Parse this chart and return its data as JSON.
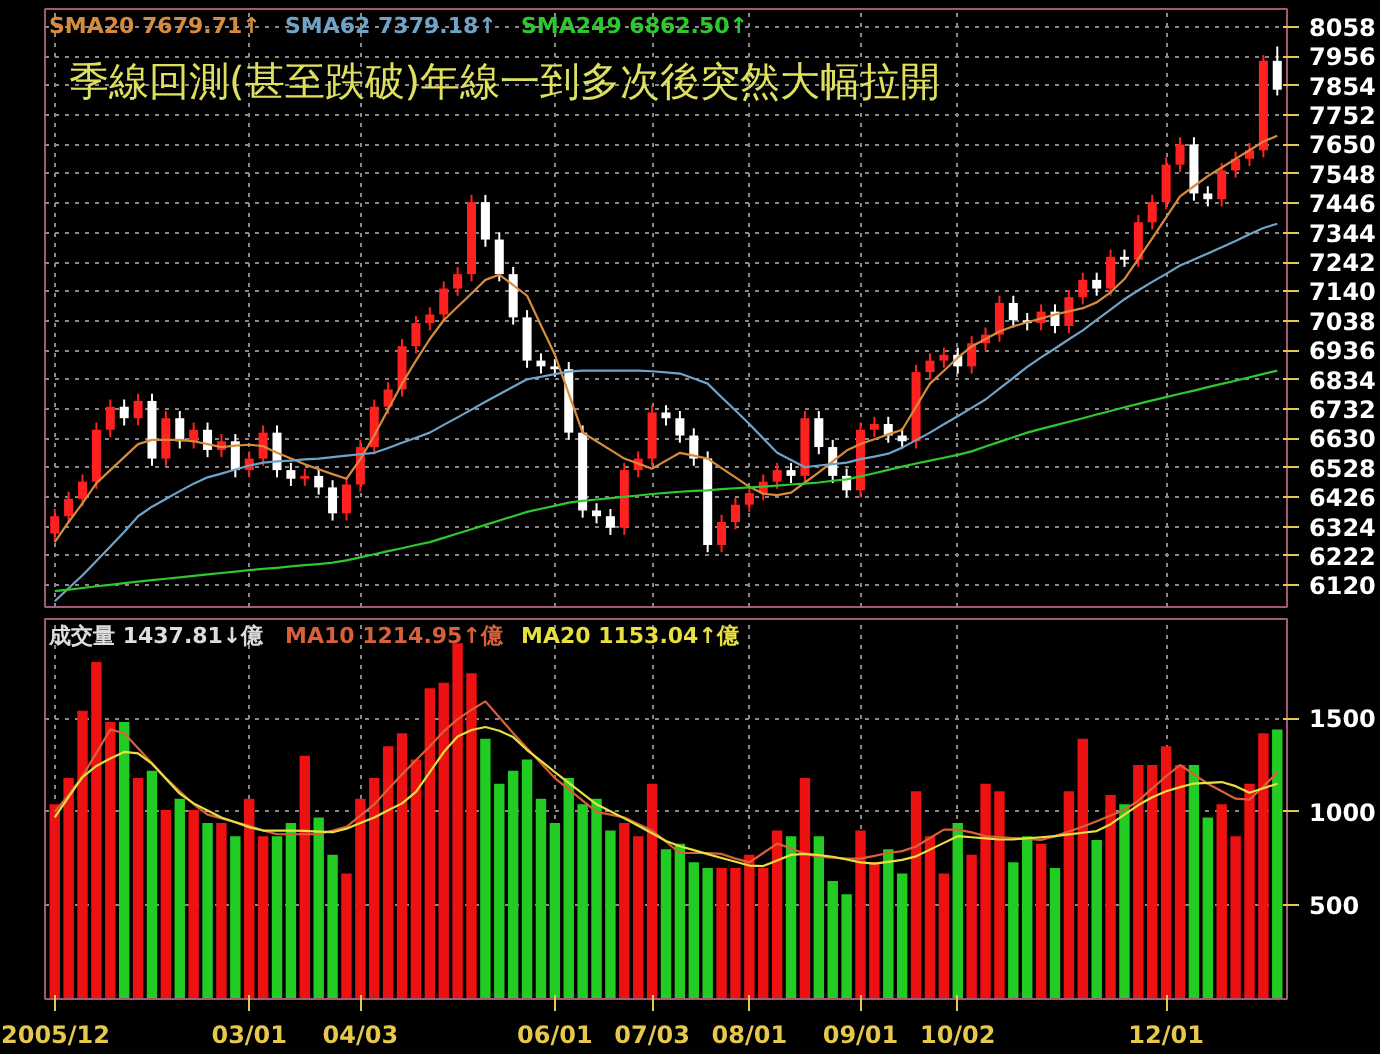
{
  "chart_data": [
    {
      "type": "candlestick",
      "title": "季線回測(甚至跌破)年線一到多次後突然大幅拉開",
      "categories": [
        null,
        null,
        null,
        null,
        null,
        null,
        null,
        null,
        null,
        null,
        null,
        null,
        null,
        null,
        null,
        null,
        null,
        null,
        null,
        null,
        null,
        null,
        null,
        null,
        null,
        null,
        null,
        null,
        null,
        null,
        null,
        null,
        null,
        null,
        null,
        null,
        null,
        null,
        null,
        null,
        null,
        null,
        null,
        null,
        null,
        null,
        null,
        null,
        null,
        null,
        null,
        null,
        null,
        null,
        null,
        null,
        null,
        null,
        null,
        null,
        null,
        null,
        null,
        null,
        null,
        null,
        null,
        null,
        null,
        null,
        null,
        null,
        null,
        null,
        null,
        null,
        null,
        null,
        null,
        null,
        null,
        null,
        null,
        null,
        null,
        null,
        null,
        null,
        null
      ],
      "ohlc": [
        [
          6300,
          6385,
          6275,
          6360
        ],
        [
          6360,
          6445,
          6335,
          6420
        ],
        [
          6420,
          6505,
          6395,
          6480
        ],
        [
          6480,
          6685,
          6455,
          6660
        ],
        [
          6660,
          6765,
          6635,
          6740
        ],
        [
          6740,
          6765,
          6675,
          6700
        ],
        [
          6700,
          6785,
          6675,
          6760
        ],
        [
          6760,
          6785,
          6535,
          6560
        ],
        [
          6560,
          6725,
          6535,
          6700
        ],
        [
          6700,
          6725,
          6595,
          6620
        ],
        [
          6620,
          6685,
          6595,
          6660
        ],
        [
          6660,
          6685,
          6565,
          6590
        ],
        [
          6590,
          6645,
          6565,
          6620
        ],
        [
          6620,
          6645,
          6495,
          6520
        ],
        [
          6520,
          6585,
          6495,
          6560
        ],
        [
          6560,
          6675,
          6535,
          6650
        ],
        [
          6650,
          6675,
          6495,
          6520
        ],
        [
          6520,
          6545,
          6465,
          6490
        ],
        [
          6490,
          6525,
          6465,
          6500
        ],
        [
          6500,
          6525,
          6435,
          6460
        ],
        [
          6460,
          6485,
          6345,
          6370
        ],
        [
          6370,
          6495,
          6345,
          6470
        ],
        [
          6470,
          6625,
          6445,
          6600
        ],
        [
          6600,
          6765,
          6575,
          6740
        ],
        [
          6740,
          6825,
          6715,
          6800
        ],
        [
          6800,
          6975,
          6775,
          6950
        ],
        [
          6950,
          7055,
          6925,
          7030
        ],
        [
          7030,
          7085,
          7005,
          7060
        ],
        [
          7060,
          7175,
          7035,
          7150
        ],
        [
          7150,
          7225,
          7125,
          7200
        ],
        [
          7200,
          7475,
          7175,
          7450
        ],
        [
          7450,
          7475,
          7295,
          7320
        ],
        [
          7320,
          7345,
          7175,
          7200
        ],
        [
          7200,
          7225,
          7025,
          7050
        ],
        [
          7050,
          7075,
          6875,
          6900
        ],
        [
          6900,
          6925,
          6855,
          6880
        ],
        [
          6880,
          6905,
          6845,
          6870
        ],
        [
          6870,
          6895,
          6625,
          6650
        ],
        [
          6650,
          6675,
          6355,
          6380
        ],
        [
          6380,
          6405,
          6335,
          6360
        ],
        [
          6360,
          6385,
          6295,
          6320
        ],
        [
          6320,
          6545,
          6295,
          6520
        ],
        [
          6520,
          6585,
          6495,
          6560
        ],
        [
          6560,
          6745,
          6535,
          6720
        ],
        [
          6720,
          6745,
          6675,
          6700
        ],
        [
          6700,
          6725,
          6615,
          6640
        ],
        [
          6640,
          6665,
          6535,
          6560
        ],
        [
          6560,
          6585,
          6235,
          6260
        ],
        [
          6260,
          6365,
          6235,
          6340
        ],
        [
          6340,
          6425,
          6315,
          6400
        ],
        [
          6400,
          6465,
          6375,
          6440
        ],
        [
          6440,
          6505,
          6415,
          6480
        ],
        [
          6480,
          6545,
          6455,
          6520
        ],
        [
          6520,
          6545,
          6475,
          6500
        ],
        [
          6500,
          6725,
          6475,
          6700
        ],
        [
          6700,
          6725,
          6575,
          6600
        ],
        [
          6600,
          6625,
          6475,
          6500
        ],
        [
          6500,
          6525,
          6425,
          6450
        ],
        [
          6450,
          6685,
          6425,
          6660
        ],
        [
          6660,
          6705,
          6635,
          6680
        ],
        [
          6680,
          6705,
          6615,
          6640
        ],
        [
          6640,
          6665,
          6595,
          6620
        ],
        [
          6620,
          6885,
          6595,
          6860
        ],
        [
          6860,
          6925,
          6835,
          6900
        ],
        [
          6900,
          6945,
          6875,
          6920
        ],
        [
          6920,
          6945,
          6855,
          6880
        ],
        [
          6880,
          6985,
          6855,
          6960
        ],
        [
          6960,
          7015,
          6935,
          6990
        ],
        [
          6990,
          7125,
          6965,
          7100
        ],
        [
          7100,
          7125,
          7015,
          7040
        ],
        [
          7040,
          7065,
          7005,
          7030
        ],
        [
          7030,
          7095,
          7005,
          7070
        ],
        [
          7070,
          7095,
          6995,
          7020
        ],
        [
          7020,
          7145,
          6995,
          7120
        ],
        [
          7120,
          7205,
          7095,
          7180
        ],
        [
          7180,
          7205,
          7125,
          7150
        ],
        [
          7150,
          7285,
          7125,
          7260
        ],
        [
          7260,
          7285,
          7225,
          7250
        ],
        [
          7250,
          7405,
          7225,
          7380
        ],
        [
          7380,
          7475,
          7355,
          7450
        ],
        [
          7450,
          7605,
          7425,
          7580
        ],
        [
          7580,
          7675,
          7555,
          7650
        ],
        [
          7650,
          7675,
          7455,
          7480
        ],
        [
          7480,
          7505,
          7435,
          7460
        ],
        [
          7460,
          7585,
          7435,
          7560
        ],
        [
          7560,
          7625,
          7535,
          7600
        ],
        [
          7600,
          7655,
          7575,
          7630
        ],
        [
          7630,
          7960,
          7605,
          7940
        ],
        [
          7940,
          7990,
          7820,
          7840
        ]
      ],
      "colors": [
        "#ff2020",
        "#ff2020",
        "#ff2020",
        "#ff2020",
        "#ff2020",
        "#ffffff",
        "#ff2020",
        "#ffffff",
        "#ff2020",
        "#ffffff",
        "#ff2020",
        "#ffffff",
        "#ff2020",
        "#ffffff",
        "#ff2020",
        "#ff2020",
        "#ffffff",
        "#ffffff",
        "#ff2020",
        "#ffffff",
        "#ffffff",
        "#ff2020",
        "#ff2020",
        "#ff2020",
        "#ff2020",
        "#ff2020",
        "#ff2020",
        "#ff2020",
        "#ff2020",
        "#ff2020",
        "#ff2020",
        "#ffffff",
        "#ffffff",
        "#ffffff",
        "#ffffff",
        "#ffffff",
        "#ffffff",
        "#ffffff",
        "#ffffff",
        "#ffffff",
        "#ffffff",
        "#ff2020",
        "#ff2020",
        "#ff2020",
        "#ffffff",
        "#ffffff",
        "#ffffff",
        "#ffffff",
        "#ff2020",
        "#ff2020",
        "#ff2020",
        "#ff2020",
        "#ff2020",
        "#ffffff",
        "#ff2020",
        "#ffffff",
        "#ffffff",
        "#ffffff",
        "#ff2020",
        "#ff2020",
        "#ffffff",
        "#ffffff",
        "#ff2020",
        "#ff2020",
        "#ff2020",
        "#ffffff",
        "#ff2020",
        "#ff2020",
        "#ff2020",
        "#ffffff",
        "#ffffff",
        "#ff2020",
        "#ffffff",
        "#ff2020",
        "#ff2020",
        "#ffffff",
        "#ff2020",
        "#ffffff",
        "#ff2020",
        "#ff2020",
        "#ff2020",
        "#ff2020",
        "#ffffff",
        "#ffffff",
        "#ff2020",
        "#ff2020",
        "#ff2020",
        "#ff2020",
        "#ffffff"
      ],
      "ylim": [
        6045,
        8120
      ],
      "yticks": [
        6120,
        6222,
        6324,
        6426,
        6528,
        6630,
        6732,
        6834,
        6936,
        7038,
        7140,
        7242,
        7344,
        7446,
        7548,
        7650,
        7752,
        7854,
        7956,
        8058
      ],
      "tick_labels": "y",
      "grid": true,
      "series": [
        {
          "type": "line",
          "name": "SMA20 7679.71↑",
          "color": "#d88b3c",
          "values": [
            6270,
            6340,
            6405,
            6475,
            6520,
            6565,
            6610,
            6625,
            6625,
            6625,
            6620,
            6610,
            6600,
            6605,
            6608,
            6603,
            6580,
            6560,
            6540,
            6523,
            6506,
            6490,
            6558,
            6640,
            6730,
            6820,
            6900,
            6975,
            7040,
            7087,
            7133,
            7180,
            7198,
            7162,
            7125,
            7022,
            6920,
            6785,
            6650,
            6620,
            6590,
            6560,
            6543,
            6525,
            6553,
            6580,
            6570,
            6560,
            6527,
            6495,
            6462,
            6438,
            6433,
            6442,
            6477,
            6512,
            6550,
            6588,
            6611,
            6627,
            6644,
            6660,
            6740,
            6820,
            6865,
            6910,
            6949,
            6975,
            7001,
            7019,
            7033,
            7046,
            7060,
            7071,
            7082,
            7102,
            7137,
            7183,
            7253,
            7324,
            7397,
            7470,
            7505,
            7540,
            7570,
            7600,
            7630,
            7660,
            7680
          ]
        },
        {
          "type": "line",
          "name": "SMA62 7379.18↑",
          "color": "#6fa3c8",
          "values": [
            6065,
            6110,
            6155,
            6205,
            6255,
            6305,
            6360,
            6393,
            6420,
            6447,
            6473,
            6495,
            6508,
            6522,
            6536,
            6546,
            6550,
            6553,
            6557,
            6560,
            6565,
            6570,
            6575,
            6580,
            6597,
            6615,
            6632,
            6650,
            6677,
            6703,
            6730,
            6757,
            6783,
            6809,
            6835,
            6844,
            6853,
            6862,
            6865,
            6865,
            6865,
            6865,
            6865,
            6863,
            6859,
            6855,
            6838,
            6820,
            6773,
            6727,
            6680,
            6630,
            6580,
            6555,
            6530,
            6536,
            6541,
            6546,
            6558,
            6567,
            6577,
            6598,
            6624,
            6650,
            6679,
            6707,
            6736,
            6765,
            6803,
            6840,
            6878,
            6911,
            6942,
            6974,
            7005,
            7041,
            7077,
            7113,
            7144,
            7173,
            7201,
            7230,
            7251,
            7272,
            7293,
            7315,
            7338,
            7360,
            7375
          ]
        },
        {
          "type": "line",
          "name": "SMA249 6862.50↑",
          "color": "#2ec82e",
          "values": [
            6100,
            6105,
            6111,
            6117,
            6122,
            6128,
            6133,
            6138,
            6143,
            6148,
            6153,
            6158,
            6163,
            6168,
            6173,
            6177,
            6181,
            6186,
            6190,
            6194,
            6199,
            6207,
            6217,
            6228,
            6239,
            6249,
            6260,
            6270,
            6285,
            6300,
            6315,
            6330,
            6345,
            6360,
            6375,
            6386,
            6396,
            6407,
            6413,
            6418,
            6423,
            6427,
            6432,
            6437,
            6441,
            6445,
            6448,
            6450,
            6454,
            6457,
            6460,
            6463,
            6466,
            6470,
            6473,
            6477,
            6483,
            6488,
            6498,
            6509,
            6521,
            6532,
            6543,
            6553,
            6563,
            6573,
            6585,
            6602,
            6618,
            6634,
            6650,
            6663,
            6675,
            6688,
            6700,
            6713,
            6725,
            6738,
            6750,
            6762,
            6773,
            6785,
            6796,
            6808,
            6819,
            6830,
            6842,
            6854,
            6865
          ]
        }
      ]
    },
    {
      "type": "bar",
      "categories": [
        "2005/12",
        null,
        null,
        null,
        null,
        null,
        null,
        null,
        null,
        null,
        null,
        null,
        null,
        null,
        "03/01",
        null,
        null,
        null,
        null,
        null,
        null,
        null,
        "04/03",
        null,
        null,
        null,
        null,
        null,
        null,
        null,
        null,
        null,
        null,
        null,
        null,
        null,
        "06/01",
        null,
        null,
        null,
        null,
        null,
        null,
        "07/03",
        null,
        null,
        null,
        null,
        null,
        null,
        "08/01",
        null,
        null,
        null,
        null,
        null,
        null,
        null,
        "09/01",
        null,
        null,
        null,
        null,
        null,
        null,
        "10/02",
        null,
        null,
        null,
        null,
        null,
        null,
        null,
        null,
        null,
        null,
        null,
        null,
        null,
        null,
        "12/01",
        null,
        null,
        null,
        null,
        null,
        null,
        null,
        null
      ],
      "ylim": [
        0,
        2030
      ],
      "yticks": [
        500,
        1000,
        1500
      ],
      "grid": true,
      "series": [
        {
          "type": "bar",
          "name": "成交量 1437.81↓億",
          "values": [
            1040,
            1180,
            1540,
            1800,
            1480,
            1480,
            1180,
            1220,
            1010,
            1070,
            1010,
            940,
            940,
            870,
            1070,
            870,
            870,
            940,
            1300,
            970,
            770,
            670,
            1070,
            1180,
            1350,
            1420,
            1280,
            1660,
            1690,
            1900,
            1740,
            1390,
            1150,
            1220,
            1280,
            1070,
            940,
            1180,
            1040,
            1070,
            900,
            940,
            870,
            1150,
            800,
            830,
            730,
            700,
            700,
            700,
            770,
            700,
            900,
            870,
            1180,
            870,
            630,
            560,
            900,
            730,
            800,
            670,
            1110,
            870,
            670,
            940,
            770,
            1150,
            1110,
            730,
            870,
            830,
            700,
            1110,
            1390,
            850,
            1090,
            1040,
            1250,
            1250,
            1350,
            1250,
            1250,
            970,
            1040,
            870,
            1150,
            1420,
            1440
          ],
          "colors": [
            "#ee1111",
            "#ee1111",
            "#ee1111",
            "#ee1111",
            "#ee1111",
            "#22cc22",
            "#ee1111",
            "#22cc22",
            "#ee1111",
            "#22cc22",
            "#ee1111",
            "#22cc22",
            "#ee1111",
            "#22cc22",
            "#ee1111",
            "#ee1111",
            "#22cc22",
            "#22cc22",
            "#ee1111",
            "#22cc22",
            "#22cc22",
            "#ee1111",
            "#ee1111",
            "#ee1111",
            "#ee1111",
            "#ee1111",
            "#ee1111",
            "#ee1111",
            "#ee1111",
            "#ee1111",
            "#ee1111",
            "#22cc22",
            "#22cc22",
            "#22cc22",
            "#22cc22",
            "#22cc22",
            "#22cc22",
            "#22cc22",
            "#22cc22",
            "#22cc22",
            "#22cc22",
            "#ee1111",
            "#ee1111",
            "#ee1111",
            "#22cc22",
            "#22cc22",
            "#22cc22",
            "#22cc22",
            "#ee1111",
            "#ee1111",
            "#ee1111",
            "#ee1111",
            "#ee1111",
            "#22cc22",
            "#ee1111",
            "#22cc22",
            "#22cc22",
            "#22cc22",
            "#ee1111",
            "#ee1111",
            "#22cc22",
            "#22cc22",
            "#ee1111",
            "#ee1111",
            "#ee1111",
            "#22cc22",
            "#ee1111",
            "#ee1111",
            "#ee1111",
            "#22cc22",
            "#22cc22",
            "#ee1111",
            "#22cc22",
            "#ee1111",
            "#ee1111",
            "#22cc22",
            "#ee1111",
            "#22cc22",
            "#ee1111",
            "#ee1111",
            "#ee1111",
            "#ee1111",
            "#22cc22",
            "#22cc22",
            "#ee1111",
            "#ee1111",
            "#ee1111",
            "#ee1111",
            "#22cc22"
          ]
        },
        {
          "type": "line",
          "name": "MA10 1214.95↑億",
          "color": "#d8603a",
          "values": [
            1000,
            1090,
            1190,
            1315,
            1440,
            1420,
            1340,
            1260,
            1180,
            1110,
            1040,
            985,
            965,
            945,
            925,
            900,
            880,
            880,
            880,
            880,
            900,
            920,
            980,
            1040,
            1120,
            1200,
            1275,
            1350,
            1430,
            1495,
            1545,
            1590,
            1505,
            1420,
            1340,
            1260,
            1180,
            1120,
            1060,
            1000,
            985,
            970,
            935,
            900,
            840,
            780,
            780,
            780,
            775,
            750,
            730,
            780,
            830,
            805,
            775,
            760,
            755,
            750,
            750,
            765,
            780,
            790,
            815,
            860,
            905,
            905,
            890,
            870,
            865,
            860,
            855,
            850,
            870,
            895,
            920,
            950,
            980,
            1010,
            1060,
            1125,
            1190,
            1250,
            1200,
            1150,
            1110,
            1070,
            1065,
            1135,
            1210
          ]
        },
        {
          "type": "line",
          "name": "MA20 1153.04↑億",
          "color": "#e8e040",
          "values": [
            970,
            1080,
            1185,
            1245,
            1285,
            1320,
            1312,
            1257,
            1177,
            1097,
            1045,
            1007,
            970,
            944,
            918,
            900,
            900,
            900,
            898,
            894,
            891,
            910,
            940,
            970,
            1008,
            1045,
            1106,
            1212,
            1319,
            1402,
            1437,
            1453,
            1433,
            1399,
            1330,
            1272,
            1212,
            1155,
            1097,
            1040,
            1003,
            965,
            926,
            885,
            844,
            816,
            795,
            774,
            753,
            733,
            713,
            710,
            740,
            770,
            775,
            769,
            760,
            745,
            730,
            723,
            733,
            743,
            762,
            798,
            834,
            870,
            864,
            858,
            852,
            853,
            858,
            864,
            870,
            879,
            888,
            897,
            934,
            985,
            1036,
            1078,
            1110,
            1132,
            1151,
            1155,
            1159,
            1137,
            1102,
            1126,
            1150
          ]
        }
      ]
    }
  ]
}
